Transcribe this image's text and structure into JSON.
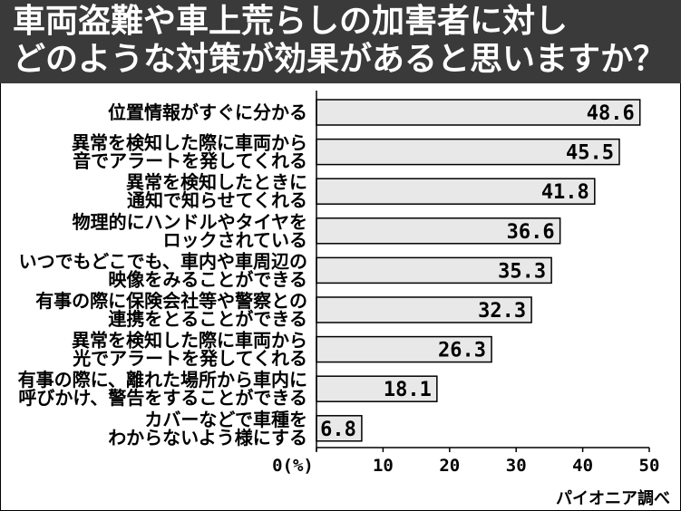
{
  "title": {
    "line1": "車両盗難や車上荒らしの加害者に対し",
    "line2": "どのような対策が効果があると思いますか？"
  },
  "source": "パイオニア調べ",
  "colors": {
    "header_bg": "#3a3a3a",
    "bar_fill": "#e8e8e8",
    "bar_stroke": "#000000"
  },
  "chart_data": {
    "type": "bar",
    "orientation": "horizontal",
    "categories": [
      [
        "位置情報がすぐに分かる"
      ],
      [
        "異常を検知した際に車両から",
        "音でアラートを発してくれる"
      ],
      [
        "異常を検知したときに",
        "通知で知らせてくれる"
      ],
      [
        "物理的にハンドルやタイヤを",
        "ロックされている"
      ],
      [
        "いつでもどこでも、車内や車周辺の",
        "映像をみることができる"
      ],
      [
        "有事の際に保険会社等や警察との",
        "連携をとることができる"
      ],
      [
        "異常を検知した際に車両から",
        "光でアラートを発してくれる"
      ],
      [
        "有事の際に、離れた場所から車内に",
        "呼びかけ、警告をすることができる"
      ],
      [
        "カバーなどで車種を",
        "わからないよう様にする"
      ]
    ],
    "values": [
      48.6,
      45.5,
      41.8,
      36.6,
      35.3,
      32.3,
      26.3,
      18.1,
      6.8
    ],
    "value_labels": [
      "48.6",
      "45.5",
      "41.8",
      "36.6",
      "35.3",
      "32.3",
      "26.3",
      "18.1",
      "6.8"
    ],
    "xlim": [
      0,
      50
    ],
    "x_ticks": [
      0,
      10,
      20,
      30,
      40,
      50
    ],
    "x_tick_labels": [
      "0(%)",
      "10",
      "20",
      "30",
      "40",
      "50"
    ],
    "legend": "none",
    "grid": false
  }
}
